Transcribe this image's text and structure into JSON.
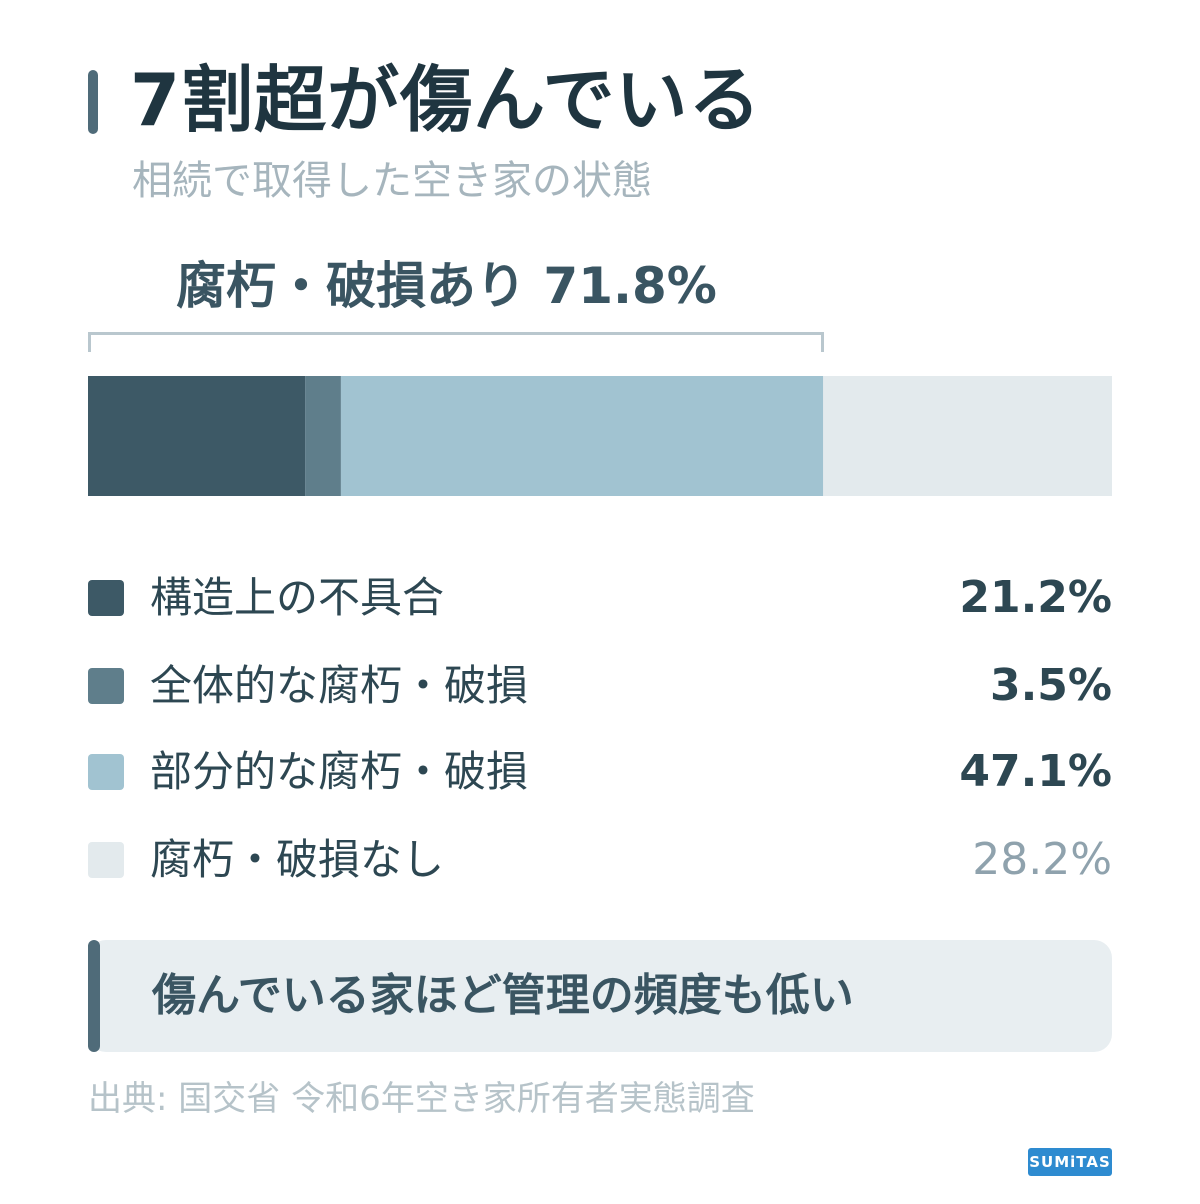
{
  "title": "7割超が傷んでいる",
  "subtitle": "相続で取得した空き家の状態",
  "bracket_label": "腐朽・破損あり 71.8%",
  "legend": [
    {
      "label": "構造上の不具合",
      "value": "21.2%",
      "color": "#3d5966"
    },
    {
      "label": "全体的な腐朽・破損",
      "value": "3.5%",
      "color": "#5f7e8b"
    },
    {
      "label": "部分的な腐朽・破損",
      "value": "47.1%",
      "color": "#a1c3d1"
    },
    {
      "label": "腐朽・破損なし",
      "value": "28.2%",
      "color": "#e3eaed"
    }
  ],
  "note": "傷んでいる家ほど管理の頻度も低い",
  "source": "出典: 国交省 令和6年空き家所有者実態調査",
  "brand": "SUMiTAS",
  "chart_data": {
    "type": "bar",
    "orientation": "horizontal-stacked",
    "title": "7割超が傷んでいる",
    "subtitle": "相続で取得した空き家の状態",
    "categories": [
      "構造上の不具合",
      "全体的な腐朽・破損",
      "部分的な腐朽・破損",
      "腐朽・破損なし"
    ],
    "values": [
      21.2,
      3.5,
      47.1,
      28.2
    ],
    "colors": [
      "#3d5966",
      "#5f7e8b",
      "#a1c3d1",
      "#e3eaed"
    ],
    "bracket": {
      "label": "腐朽・破損あり 71.8%",
      "value": 71.8
    },
    "xlim": [
      0,
      100
    ]
  }
}
